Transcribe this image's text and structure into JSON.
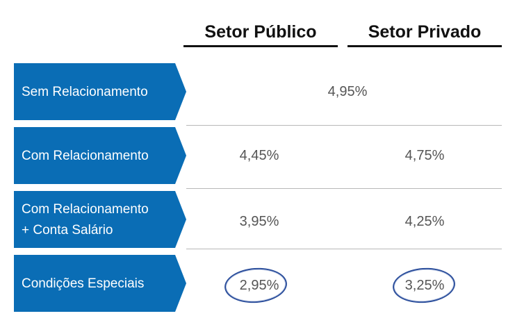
{
  "headers": {
    "public": "Setor Público",
    "private": "Setor Privado"
  },
  "rows": [
    {
      "label_line1": "Sem Relacionamento",
      "label_line2": "",
      "combined": "4,95%"
    },
    {
      "label_line1": "Com Relacionamento",
      "label_line2": "",
      "public": "4,45%",
      "private": "4,75%"
    },
    {
      "label_line1": "Com Relacionamento",
      "label_line2": "+ Conta Salário",
      "public": "3,95%",
      "private": "4,25%"
    },
    {
      "label_line1": "Condições Especiais",
      "label_line2": "",
      "public": "2,95%",
      "private": "3,25%"
    }
  ],
  "colors": {
    "label_bg": "#0a6db5",
    "circle": "#2c4f9c"
  }
}
